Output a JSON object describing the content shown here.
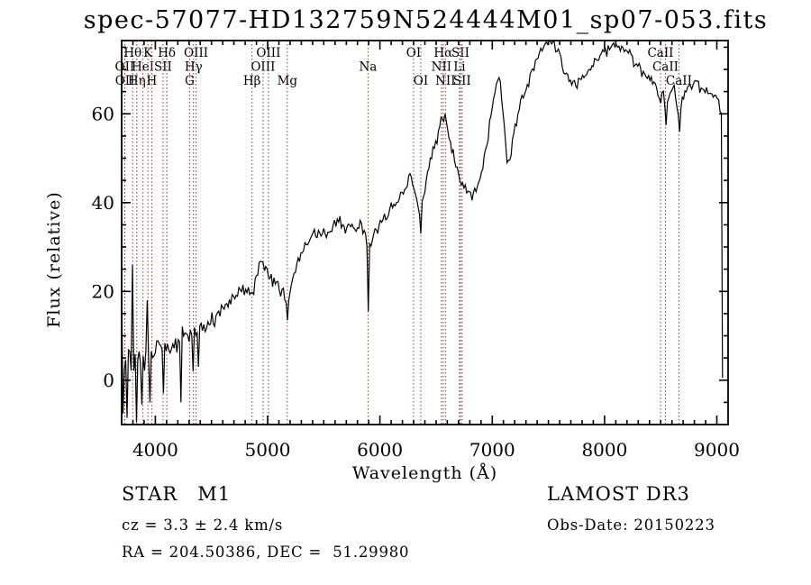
{
  "title": "spec-57077-HD132759N524444M01_sp07-053.fits",
  "annotations": {
    "object_class": "STAR",
    "subclass": "M1",
    "cz": "cz = 3.3 ± 2.4 km/s",
    "ra_dec": "RA = 204.50386, DEC =  51.29980",
    "survey": "LAMOST DR3",
    "obs_date": "Obs-Date: 20150223"
  },
  "chart_data": {
    "type": "line",
    "title": "spec-57077-HD132759N524444M01_sp07-053.fits",
    "xlabel": "Wavelength (Å)",
    "ylabel": "Flux (relative)",
    "xlim": [
      3700,
      9100
    ],
    "ylim": [
      -10,
      76.5
    ],
    "x_major_ticks": [
      4000,
      5000,
      6000,
      7000,
      8000,
      9000
    ],
    "x_minor_step": 100,
    "y_major_ticks": [
      0,
      20,
      40,
      60
    ],
    "y_minor_step": 5,
    "grid": false,
    "legend": "none",
    "line_color": "#000000",
    "marker_color": "#9e2f2f",
    "spectral_lines": [
      {
        "label": "Hθ",
        "wl": 3798,
        "row": 1
      },
      {
        "label": "K",
        "wl": 3934,
        "row": 1
      },
      {
        "label": "Hδ",
        "wl": 4102,
        "row": 1
      },
      {
        "label": "OIII",
        "wl": 4363,
        "row": 1
      },
      {
        "label": "OIII",
        "wl": 5007,
        "row": 1
      },
      {
        "label": "OI",
        "wl": 6300,
        "row": 1
      },
      {
        "label": "Hα",
        "wl": 6563,
        "row": 1
      },
      {
        "label": "SII",
        "wl": 6717,
        "row": 1
      },
      {
        "label": "CaII",
        "wl": 8498,
        "row": 1
      },
      {
        "label": "OII",
        "wl": 3727,
        "row": 2
      },
      {
        "label": "HeI",
        "wl": 3889,
        "row": 2
      },
      {
        "label": "SII",
        "wl": 4068,
        "row": 2
      },
      {
        "label": "Hγ",
        "wl": 4340,
        "row": 2
      },
      {
        "label": "OIII",
        "wl": 4959,
        "row": 2
      },
      {
        "label": "Na",
        "wl": 5894,
        "row": 2
      },
      {
        "label": "NII",
        "wl": 6548,
        "row": 2
      },
      {
        "label": "Li",
        "wl": 6708,
        "row": 2
      },
      {
        "label": "CaII",
        "wl": 8542,
        "row": 2
      },
      {
        "label": "OII",
        "wl": 3729,
        "row": 3
      },
      {
        "label": "Hη",
        "wl": 3835,
        "row": 3
      },
      {
        "label": "H",
        "wl": 3968,
        "row": 3
      },
      {
        "label": "G",
        "wl": 4305,
        "row": 3
      },
      {
        "label": "Hβ",
        "wl": 4861,
        "row": 3
      },
      {
        "label": "Mg",
        "wl": 5175,
        "row": 3
      },
      {
        "label": "OI",
        "wl": 6364,
        "row": 3
      },
      {
        "label": "NII",
        "wl": 6583,
        "row": 3
      },
      {
        "label": "SII",
        "wl": 6731,
        "row": 3
      },
      {
        "label": "CaII",
        "wl": 8662,
        "row": 3
      }
    ],
    "envelope": [
      [
        3700,
        4
      ],
      [
        3760,
        4.5
      ],
      [
        3820,
        5
      ],
      [
        3880,
        5.5
      ],
      [
        3940,
        6
      ],
      [
        4000,
        7.5
      ],
      [
        4060,
        7
      ],
      [
        4130,
        7.8
      ],
      [
        4200,
        8.8
      ],
      [
        4270,
        9.8
      ],
      [
        4310,
        9.5
      ],
      [
        4350,
        10
      ],
      [
        4420,
        12
      ],
      [
        4480,
        13
      ],
      [
        4550,
        14.5
      ],
      [
        4620,
        16.5
      ],
      [
        4700,
        19
      ],
      [
        4770,
        21
      ],
      [
        4830,
        20.5
      ],
      [
        4862,
        19
      ],
      [
        4900,
        24
      ],
      [
        4945,
        26.5
      ],
      [
        4980,
        25.5
      ],
      [
        5030,
        23
      ],
      [
        5090,
        21
      ],
      [
        5140,
        20
      ],
      [
        5176,
        15.5
      ],
      [
        5210,
        21
      ],
      [
        5260,
        25.5
      ],
      [
        5320,
        29.5
      ],
      [
        5380,
        32
      ],
      [
        5440,
        33.5
      ],
      [
        5500,
        32.5
      ],
      [
        5560,
        33.5
      ],
      [
        5620,
        35.5
      ],
      [
        5680,
        35
      ],
      [
        5740,
        34.5
      ],
      [
        5800,
        35
      ],
      [
        5860,
        33.5
      ],
      [
        5890,
        31
      ],
      [
        5920,
        31.5
      ],
      [
        5980,
        34
      ],
      [
        6040,
        36.5
      ],
      [
        6100,
        38.5
      ],
      [
        6170,
        41.5
      ],
      [
        6230,
        43.5
      ],
      [
        6280,
        45.5
      ],
      [
        6315,
        41
      ],
      [
        6345,
        37.5
      ],
      [
        6390,
        42
      ],
      [
        6450,
        49
      ],
      [
        6510,
        55
      ],
      [
        6550,
        58.5
      ],
      [
        6580,
        59.5
      ],
      [
        6620,
        54.5
      ],
      [
        6660,
        50
      ],
      [
        6700,
        46
      ],
      [
        6760,
        43
      ],
      [
        6820,
        41.5
      ],
      [
        6870,
        43.5
      ],
      [
        6920,
        48.5
      ],
      [
        6970,
        56.5
      ],
      [
        7020,
        64
      ],
      [
        7060,
        68.5
      ],
      [
        7095,
        61
      ],
      [
        7130,
        50
      ],
      [
        7160,
        49.5
      ],
      [
        7200,
        56.5
      ],
      [
        7250,
        62.5
      ],
      [
        7300,
        66
      ],
      [
        7350,
        69.5
      ],
      [
        7400,
        72.5
      ],
      [
        7450,
        74.5
      ],
      [
        7500,
        75.8
      ],
      [
        7550,
        75.2
      ],
      [
        7600,
        73.5
      ],
      [
        7640,
        69.5
      ],
      [
        7690,
        67.5
      ],
      [
        7740,
        67
      ],
      [
        7800,
        67.5
      ],
      [
        7860,
        69.5
      ],
      [
        7920,
        72
      ],
      [
        7980,
        73.5
      ],
      [
        8040,
        74.5
      ],
      [
        8100,
        75.6
      ],
      [
        8160,
        74.8
      ],
      [
        8220,
        73.5
      ],
      [
        8290,
        71
      ],
      [
        8360,
        69
      ],
      [
        8430,
        67
      ],
      [
        8470,
        65.5
      ],
      [
        8500,
        62.5
      ],
      [
        8525,
        65.5
      ],
      [
        8545,
        60
      ],
      [
        8580,
        64.5
      ],
      [
        8625,
        66.5
      ],
      [
        8663,
        58.5
      ],
      [
        8700,
        64.5
      ],
      [
        8760,
        66.5
      ],
      [
        8830,
        66.5
      ],
      [
        8900,
        65
      ],
      [
        8960,
        64
      ],
      [
        9020,
        63
      ],
      [
        9040,
        60
      ],
      [
        9044,
        30
      ],
      [
        9048,
        0.5
      ]
    ],
    "noise_profile": [
      [
        3700,
        5
      ],
      [
        3900,
        4.2
      ],
      [
        4050,
        3
      ],
      [
        4250,
        2.2
      ],
      [
        4500,
        1.9
      ],
      [
        4800,
        1.7
      ],
      [
        5100,
        1.5
      ],
      [
        5600,
        1.5
      ],
      [
        6000,
        1.4
      ],
      [
        6600,
        1.3
      ],
      [
        7100,
        1.3
      ],
      [
        7700,
        1.1
      ],
      [
        8300,
        1.2
      ],
      [
        8700,
        1.3
      ],
      [
        9050,
        1.2
      ]
    ],
    "spikes": [
      [
        3705,
        20
      ],
      [
        3712,
        -7.5
      ],
      [
        3748,
        -8.5
      ],
      [
        3792,
        26
      ],
      [
        3836,
        -9.5
      ],
      [
        3885,
        -5.5
      ],
      [
        3928,
        18
      ],
      [
        3952,
        -5
      ],
      [
        4076,
        -3
      ],
      [
        4225,
        -5
      ],
      [
        4340,
        2
      ],
      [
        4383,
        3
      ],
      [
        5176,
        13.5
      ],
      [
        5896,
        15.5
      ],
      [
        6365,
        33
      ],
      [
        8545,
        57.5
      ],
      [
        8663,
        56
      ]
    ]
  }
}
